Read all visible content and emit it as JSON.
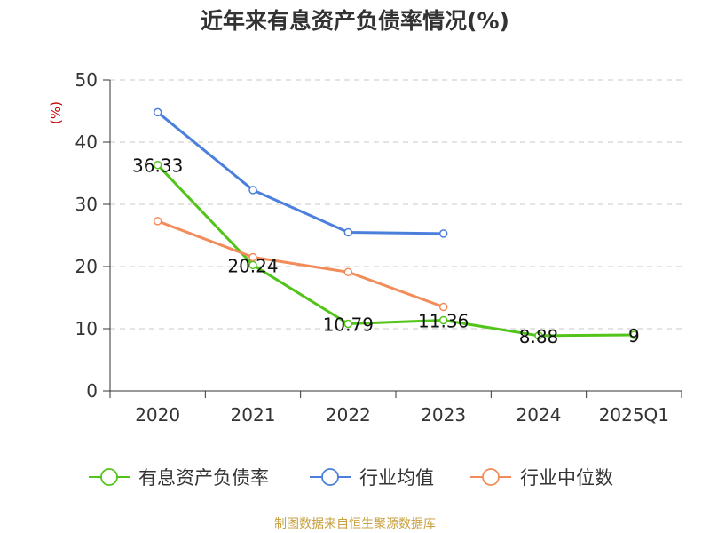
{
  "title": "近年来有息资产负债率情况(%)",
  "source": "制图数据来自恒生聚源数据库",
  "chart_data": {
    "type": "line",
    "title": "近年来有息资产负债率情况(%)",
    "ylabel": "(%)",
    "xlabel": "",
    "categories": [
      "2020",
      "2021",
      "2022",
      "2023",
      "2024",
      "2025Q1"
    ],
    "ylim": [
      0,
      50
    ],
    "yticks": [
      0,
      10,
      20,
      30,
      40,
      50
    ],
    "grid": true,
    "legend_position": "bottom",
    "series": [
      {
        "name": "有息资产负债率",
        "color": "#52c41a",
        "values": [
          36.33,
          20.24,
          10.79,
          11.36,
          8.88,
          9
        ],
        "labels": [
          "36.33",
          "20.24",
          "10.79",
          "11.36",
          "8.88",
          "9"
        ]
      },
      {
        "name": "行业均值",
        "color": "#4a7fdc",
        "values": [
          44.8,
          32.3,
          25.5,
          25.3,
          null,
          null
        ]
      },
      {
        "name": "行业中位数",
        "color": "#f28c5a",
        "values": [
          27.3,
          21.5,
          19.1,
          13.5,
          null,
          null
        ]
      }
    ]
  }
}
